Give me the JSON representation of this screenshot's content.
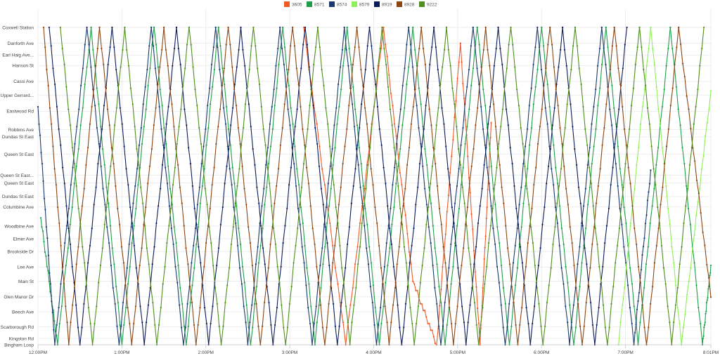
{
  "chart_data": {
    "type": "line",
    "title": "",
    "xlabel": "",
    "ylabel": "",
    "grid": true,
    "legend_position": "top-center",
    "x_ticks": [
      "12:00PM",
      "1:00PM",
      "2:00PM",
      "3:00PM",
      "4:00PM",
      "5:00PM",
      "6:00PM",
      "7:00PM",
      "8:01PM"
    ],
    "x_range": [
      "12:00PM",
      "8:01PM"
    ],
    "stops": [
      {
        "name": "Coxwell Station",
        "pos": 0
      },
      {
        "name": "Danforth Ave",
        "pos": 0.05
      },
      {
        "name": "Earl Haig Ave...",
        "pos": 0.087
      },
      {
        "name": "Hanson St",
        "pos": 0.12
      },
      {
        "name": "Cassi Ave",
        "pos": 0.17
      },
      {
        "name": "Upper Gerrard...",
        "pos": 0.214
      },
      {
        "name": "Eastwood Rd",
        "pos": 0.264
      },
      {
        "name": "Robbins Ave",
        "pos": 0.322
      },
      {
        "name": "Dundas St East",
        "pos": 0.345
      },
      {
        "name": "Queen St East",
        "pos": 0.4
      },
      {
        "name": "Queen St East...",
        "pos": 0.466
      },
      {
        "name": "Queen St East",
        "pos": 0.49
      },
      {
        "name": "Dundas St East",
        "pos": 0.533
      },
      {
        "name": "Columbine Ave",
        "pos": 0.566
      },
      {
        "name": "Woodbine Ave",
        "pos": 0.626
      },
      {
        "name": "Elmer Ave",
        "pos": 0.666
      },
      {
        "name": "Brookside Dr",
        "pos": 0.706
      },
      {
        "name": "Lee Ave",
        "pos": 0.755
      },
      {
        "name": "Main St",
        "pos": 0.8
      },
      {
        "name": "Glen Manor Dr",
        "pos": 0.849
      },
      {
        "name": "Beech Ave",
        "pos": 0.896
      },
      {
        "name": "Scarborough Rd",
        "pos": 0.944
      },
      {
        "name": "Kingston Rd",
        "pos": 0.98
      },
      {
        "name": "Bingham Loop",
        "pos": 1
      }
    ],
    "series": [
      {
        "name": "3605",
        "color": "#f05a28",
        "trips": [
          [
            190,
            0.0,
            220,
            1.0
          ],
          [
            220,
            1.0,
            247,
            0.0
          ],
          [
            247,
            0.0,
            268,
            0.8
          ],
          [
            268,
            0.8,
            285,
            1.0
          ],
          [
            285,
            1.0,
            302,
            0.05
          ],
          [
            302,
            0.05,
            316,
            1.0
          ],
          [
            316,
            1.0,
            324,
            0.3
          ]
        ]
      },
      {
        "name": "8571",
        "color": "#1f9e4a",
        "trips": [
          [
            2,
            0.6,
            14,
            1.0
          ],
          [
            14,
            1.0,
            38,
            0.0
          ],
          [
            38,
            0.0,
            60,
            1.0
          ],
          [
            60,
            1.0,
            83,
            0.0
          ],
          [
            83,
            0.0,
            106,
            1.0
          ],
          [
            106,
            1.0,
            129,
            0.0
          ],
          [
            129,
            0.0,
            152,
            1.0
          ],
          [
            152,
            1.0,
            175,
            0.0
          ],
          [
            175,
            0.0,
            198,
            1.0
          ],
          [
            198,
            1.0,
            221,
            0.0
          ],
          [
            221,
            0.0,
            244,
            1.0
          ],
          [
            244,
            1.0,
            268,
            0.0
          ],
          [
            268,
            0.0,
            291,
            1.0
          ],
          [
            291,
            1.0,
            314,
            0.0
          ],
          [
            314,
            0.0,
            337,
            1.0
          ],
          [
            337,
            1.0,
            360,
            0.0
          ],
          [
            360,
            0.0,
            383,
            1.0
          ],
          [
            383,
            1.0,
            406,
            0.0
          ],
          [
            406,
            0.0,
            429,
            1.0
          ],
          [
            429,
            1.0,
            452,
            0.0
          ],
          [
            452,
            0.0,
            475,
            1.0
          ],
          [
            475,
            1.0,
            481,
            0.75
          ]
        ]
      },
      {
        "name": "8574",
        "color": "#1b3a6b",
        "trips": [
          [
            0,
            0.25,
            12,
            1.0
          ],
          [
            12,
            1.0,
            35,
            0.0
          ],
          [
            35,
            0.0,
            58,
            1.0
          ],
          [
            58,
            1.0,
            81,
            0.0
          ],
          [
            81,
            0.0,
            104,
            1.0
          ],
          [
            104,
            1.0,
            127,
            0.0
          ],
          [
            127,
            0.0,
            150,
            1.0
          ],
          [
            150,
            1.0,
            173,
            0.0
          ],
          [
            173,
            0.0,
            196,
            1.0
          ],
          [
            196,
            1.0,
            219,
            0.0
          ],
          [
            219,
            0.0,
            242,
            1.0
          ],
          [
            242,
            1.0,
            265,
            0.0
          ],
          [
            265,
            0.0,
            288,
            1.0
          ],
          [
            288,
            1.0,
            311,
            0.0
          ],
          [
            311,
            0.0,
            334,
            1.0
          ],
          [
            334,
            1.0,
            357,
            0.0
          ],
          [
            357,
            0.0,
            380,
            1.0
          ],
          [
            380,
            1.0,
            403,
            0.0
          ],
          [
            403,
            0.0,
            426,
            1.0
          ],
          [
            426,
            1.0,
            438,
            0.45
          ]
        ]
      },
      {
        "name": "8579",
        "color": "#8ff05a",
        "trips": [
          [
            415,
            1.0,
            438,
            0.0
          ],
          [
            438,
            0.0,
            460,
            1.0
          ],
          [
            460,
            1.0,
            481,
            0.2
          ]
        ]
      },
      {
        "name": "8919",
        "color": "#0d1b56",
        "trips": [
          [
            8,
            0.0,
            30,
            1.0
          ],
          [
            30,
            1.0,
            53,
            0.0
          ],
          [
            53,
            0.0,
            76,
            1.0
          ],
          [
            76,
            1.0,
            99,
            0.0
          ],
          [
            99,
            0.0,
            122,
            1.0
          ],
          [
            122,
            1.0,
            145,
            0.0
          ],
          [
            145,
            0.0,
            168,
            1.0
          ],
          [
            168,
            1.0,
            191,
            0.0
          ],
          [
            191,
            0.0,
            214,
            1.0
          ],
          [
            214,
            1.0,
            237,
            0.0
          ],
          [
            237,
            0.0,
            260,
            1.0
          ],
          [
            260,
            1.0,
            283,
            0.0
          ],
          [
            283,
            0.0,
            306,
            1.0
          ],
          [
            306,
            1.0,
            329,
            0.0
          ],
          [
            329,
            0.0,
            352,
            1.0
          ],
          [
            352,
            1.0,
            375,
            0.0
          ],
          [
            375,
            0.0,
            398,
            1.0
          ],
          [
            398,
            1.0,
            421,
            0.0
          ]
        ]
      },
      {
        "name": "8928",
        "color": "#8b4513",
        "trips": [
          [
            4,
            0.0,
            22,
            1.0
          ],
          [
            22,
            1.0,
            44,
            0.0
          ],
          [
            44,
            0.0,
            67,
            1.0
          ],
          [
            67,
            1.0,
            90,
            0.0
          ],
          [
            90,
            0.0,
            113,
            1.0
          ],
          [
            113,
            1.0,
            136,
            0.0
          ],
          [
            136,
            0.0,
            159,
            1.0
          ],
          [
            159,
            1.0,
            182,
            0.0
          ],
          [
            182,
            0.0,
            205,
            1.0
          ],
          [
            205,
            1.0,
            228,
            0.0
          ],
          [
            228,
            0.0,
            251,
            1.0
          ],
          [
            251,
            1.0,
            274,
            0.0
          ],
          [
            274,
            0.0,
            297,
            1.0
          ],
          [
            297,
            1.0,
            320,
            0.0
          ],
          [
            320,
            0.0,
            343,
            1.0
          ],
          [
            343,
            1.0,
            366,
            0.0
          ],
          [
            366,
            0.0,
            389,
            1.0
          ],
          [
            389,
            1.0,
            412,
            0.0
          ],
          [
            412,
            0.0,
            435,
            1.0
          ],
          [
            435,
            1.0,
            458,
            0.0
          ],
          [
            458,
            0.0,
            481,
            0.85
          ]
        ]
      },
      {
        "name": "9222",
        "color": "#4f8f1f",
        "trips": [
          [
            16,
            0.0,
            39,
            1.0
          ],
          [
            39,
            1.0,
            62,
            0.0
          ],
          [
            62,
            0.0,
            85,
            1.0
          ],
          [
            85,
            1.0,
            108,
            0.0
          ],
          [
            108,
            0.0,
            131,
            1.0
          ],
          [
            131,
            1.0,
            154,
            0.0
          ],
          [
            154,
            0.0,
            177,
            1.0
          ],
          [
            177,
            1.0,
            200,
            0.0
          ],
          [
            200,
            0.0,
            223,
            1.0
          ],
          [
            223,
            1.0,
            246,
            0.0
          ],
          [
            246,
            0.0,
            269,
            1.0
          ],
          [
            269,
            1.0,
            292,
            0.0
          ],
          [
            292,
            0.0,
            315,
            1.0
          ],
          [
            315,
            1.0,
            338,
            0.0
          ],
          [
            338,
            0.0,
            361,
            1.0
          ],
          [
            361,
            1.0,
            384,
            0.0
          ],
          [
            384,
            0.0,
            407,
            1.0
          ],
          [
            407,
            1.0,
            430,
            0.0
          ],
          [
            430,
            0.0,
            453,
            1.0
          ],
          [
            453,
            1.0,
            476,
            0.0
          ]
        ]
      }
    ]
  }
}
